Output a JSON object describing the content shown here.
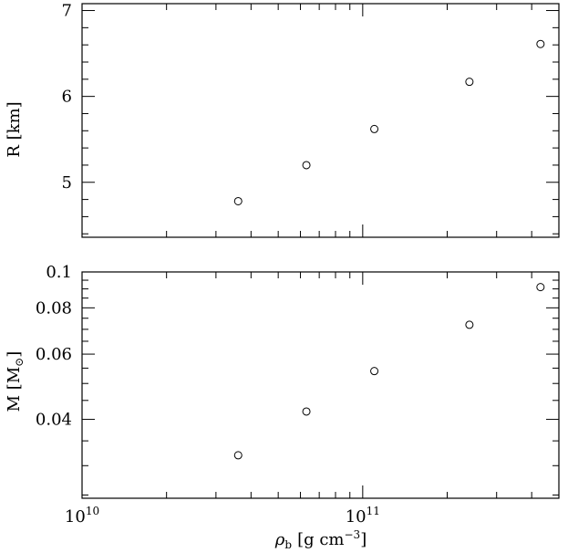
{
  "chart_data": [
    {
      "type": "scatter",
      "panel": "top",
      "ylabel": "R [km]",
      "xscale": "log",
      "xlim": [
        10000000000.0,
        500000000000.0
      ],
      "ylim": [
        4.36,
        7.08
      ],
      "x_ticks_labeled": [],
      "y_ticks": [
        5,
        6,
        7
      ],
      "y_tick_labels": [
        "5",
        "6",
        "7"
      ],
      "series": [
        {
          "x": [
            36000000000.0,
            63000000000.0,
            110000000000.0,
            240000000000.0,
            430000000000.0
          ],
          "y": [
            4.78,
            5.2,
            5.62,
            6.17,
            6.61
          ]
        }
      ]
    },
    {
      "type": "scatter",
      "panel": "bottom",
      "ylabel": "M [M",
      "ylabel_sub": "⊙",
      "ylabel_end": "]",
      "xlabel": "[g cm",
      "xlabel_symbol": "ρ",
      "xlabel_symbol_sub": "b",
      "xlabel_sup": "−3",
      "xlabel_end": "]",
      "xscale": "log",
      "yscale": "log",
      "xlim": [
        10000000000.0,
        500000000000.0
      ],
      "ylim": [
        0.0245,
        0.1
      ],
      "x_ticks_labeled": [
        10000000000.0,
        100000000000.0
      ],
      "x_tick_labels": [
        "10",
        "10"
      ],
      "x_tick_exponents": [
        "10",
        "11"
      ],
      "y_ticks": [
        0.04,
        0.06,
        0.08,
        0.1
      ],
      "y_tick_labels": [
        "0.04",
        "0.06",
        "0.08",
        "0.1"
      ],
      "series": [
        {
          "x": [
            36000000000.0,
            63000000000.0,
            110000000000.0,
            240000000000.0,
            430000000000.0
          ],
          "y": [
            0.032,
            0.042,
            0.054,
            0.072,
            0.091
          ]
        }
      ]
    }
  ]
}
